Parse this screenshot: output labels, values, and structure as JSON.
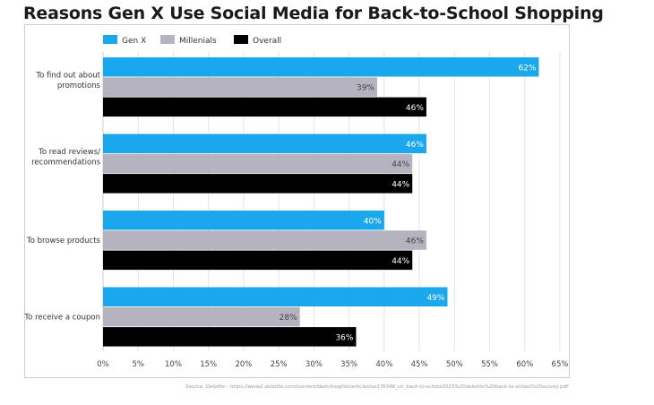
{
  "chart_data": {
    "type": "bar",
    "orientation": "horizontal",
    "title": "Reasons Gen X Use Social Media for Back-to-School Shopping",
    "categories": [
      [
        "To find out about",
        "promotions"
      ],
      [
        "To read reviews/",
        "recommendations"
      ],
      [
        "To browse products"
      ],
      [
        "To receive a coupon"
      ]
    ],
    "series": [
      {
        "name": "Gen X",
        "color": "#1aa7ec",
        "label_color": "#ffffff",
        "values": [
          62,
          46,
          40,
          49
        ]
      },
      {
        "name": "Millenials",
        "color": "#b5b3bf",
        "label_color": "#444444",
        "values": [
          39,
          44,
          46,
          28
        ]
      },
      {
        "name": "Overall",
        "color": "#000000",
        "label_color": "#ffffff",
        "values": [
          46,
          44,
          44,
          36
        ]
      }
    ],
    "value_suffix": "%",
    "xlim": [
      0,
      65
    ],
    "xticks": [
      0,
      5,
      10,
      15,
      20,
      25,
      30,
      35,
      40,
      45,
      50,
      55,
      60,
      65
    ],
    "tick_suffix": "%",
    "grid": true,
    "legend_position": "top-left"
  },
  "source": {
    "prefix": "Source: Deloitte",
    "url": "- https://www2.deloitte.com/content/dam/insights/articles/us176346_cb_back-to-school2023%20deloitte%20back-to-school%20survey.pdf"
  }
}
